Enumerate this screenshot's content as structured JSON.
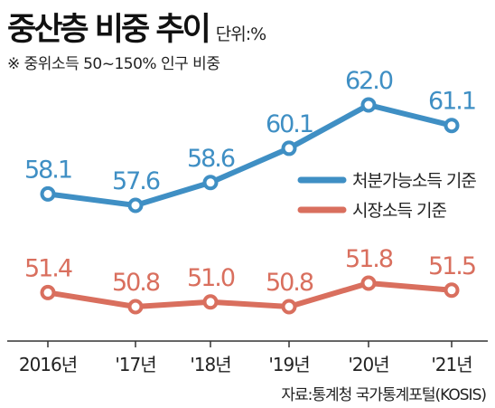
{
  "header": {
    "title": "중산층 비중 추이",
    "unit": "단위:%",
    "subtitle": "※ 중위소득 50~150% 인구 비중"
  },
  "source": "자료:통계청 국가통계포털(KOSIS)",
  "colors": {
    "series1": "#3f8fc4",
    "series2": "#d96f5e",
    "axis": "#333333"
  },
  "chart_data": {
    "type": "line",
    "categories": [
      "2016년",
      "'17년",
      "'18년",
      "'19년",
      "'20년",
      "'21년"
    ],
    "series": [
      {
        "name": "처분가능소득 기준",
        "values": [
          58.1,
          57.6,
          58.6,
          60.1,
          62.0,
          61.1
        ],
        "labels": [
          "58.1",
          "57.6",
          "58.6",
          "60.1",
          "62.0",
          "61.1"
        ]
      },
      {
        "name": "시장소득 기준",
        "values": [
          51.4,
          50.8,
          51.0,
          50.8,
          51.8,
          51.5
        ],
        "labels": [
          "51.4",
          "50.8",
          "51.0",
          "50.8",
          "51.8",
          "51.5"
        ]
      }
    ],
    "legend_position": "right-middle",
    "grid": false
  }
}
